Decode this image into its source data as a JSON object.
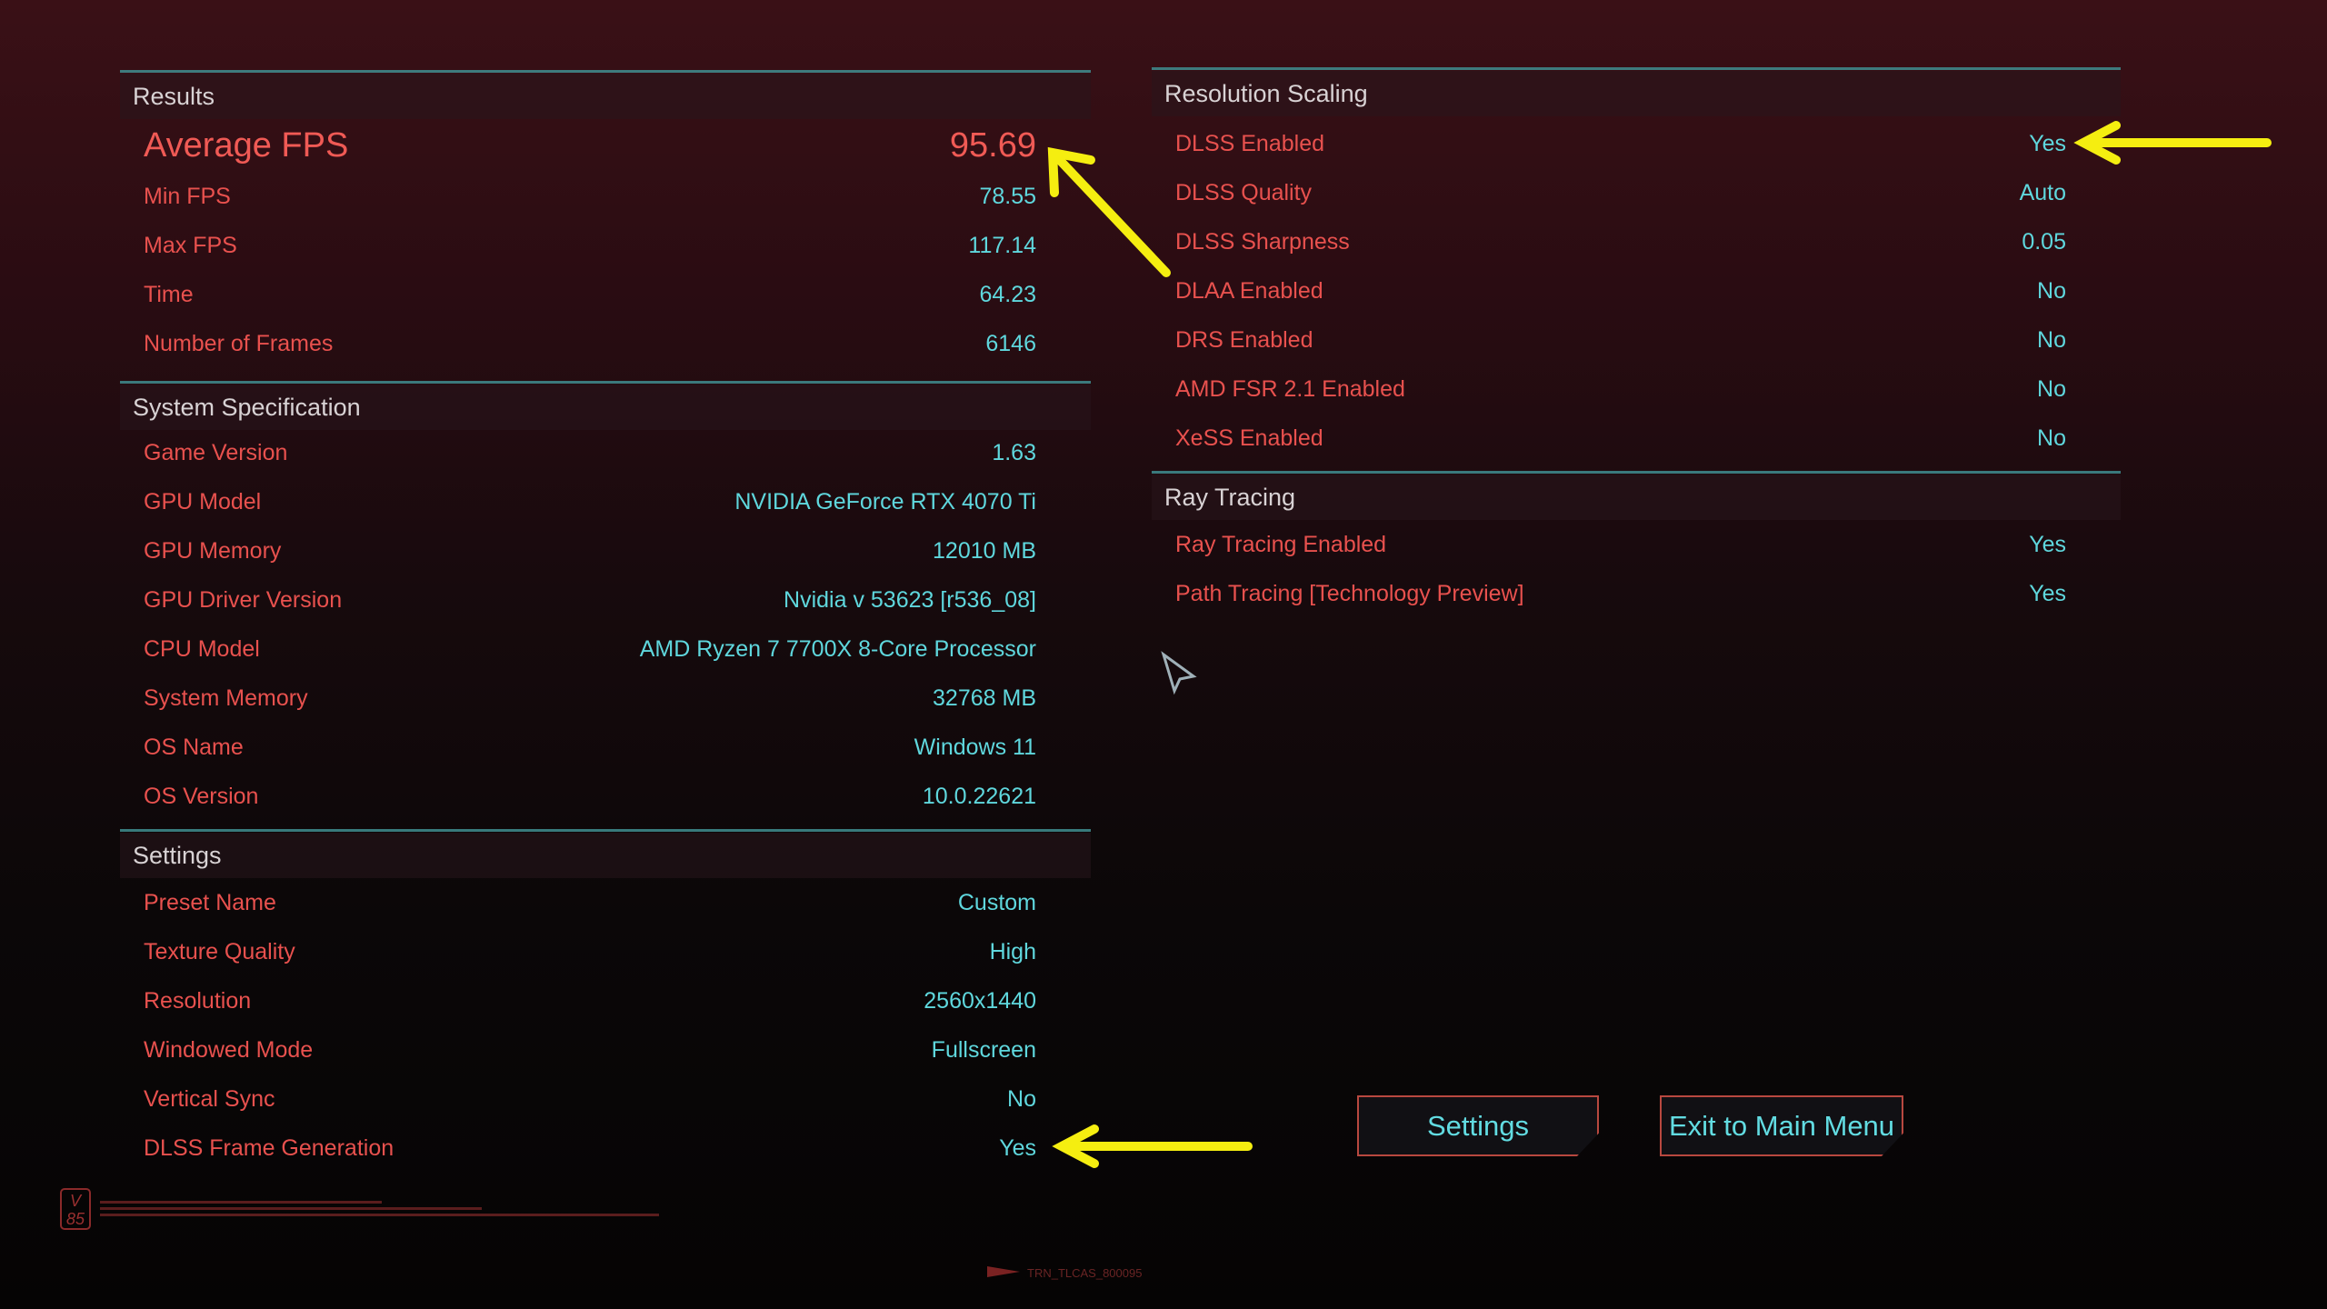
{
  "colors": {
    "label": "#e8514e",
    "value": "#5fd7dd",
    "accent_line": "#3f8e90",
    "annotation_arrow": "#f5ee10"
  },
  "left_sections": [
    {
      "title": "Results",
      "rows": [
        {
          "label": "Average FPS",
          "value": "95.69",
          "highlight": true
        },
        {
          "label": "Min FPS",
          "value": "78.55"
        },
        {
          "label": "Max FPS",
          "value": "117.14"
        },
        {
          "label": "Time",
          "value": "64.23"
        },
        {
          "label": "Number of Frames",
          "value": "6146"
        }
      ]
    },
    {
      "title": "System Specification",
      "rows": [
        {
          "label": "Game Version",
          "value": "1.63"
        },
        {
          "label": "GPU Model",
          "value": "NVIDIA GeForce RTX 4070 Ti"
        },
        {
          "label": "GPU Memory",
          "value": "12010 MB"
        },
        {
          "label": "GPU Driver Version",
          "value": "Nvidia v 53623 [r536_08]"
        },
        {
          "label": "CPU Model",
          "value": "AMD Ryzen 7 7700X 8-Core Processor"
        },
        {
          "label": "System Memory",
          "value": "32768 MB"
        },
        {
          "label": "OS Name",
          "value": "Windows 11"
        },
        {
          "label": "OS Version",
          "value": "10.0.22621"
        }
      ]
    },
    {
      "title": "Settings",
      "rows": [
        {
          "label": "Preset Name",
          "value": "Custom"
        },
        {
          "label": "Texture Quality",
          "value": "High"
        },
        {
          "label": "Resolution",
          "value": "2560x1440"
        },
        {
          "label": "Windowed Mode",
          "value": "Fullscreen"
        },
        {
          "label": "Vertical Sync",
          "value": "No"
        },
        {
          "label": "DLSS Frame Generation",
          "value": "Yes"
        }
      ]
    }
  ],
  "right_sections": [
    {
      "title": "Resolution Scaling",
      "rows": [
        {
          "label": "DLSS Enabled",
          "value": "Yes"
        },
        {
          "label": "DLSS Quality",
          "value": "Auto"
        },
        {
          "label": "DLSS Sharpness",
          "value": "0.05"
        },
        {
          "label": "DLAA Enabled",
          "value": "No"
        },
        {
          "label": "DRS Enabled",
          "value": "No"
        },
        {
          "label": "AMD FSR 2.1 Enabled",
          "value": "No"
        },
        {
          "label": "XeSS Enabled",
          "value": "No"
        }
      ]
    },
    {
      "title": "Ray Tracing",
      "rows": [
        {
          "label": "Ray Tracing Enabled",
          "value": "Yes"
        },
        {
          "label": "Path Tracing [Technology Preview]",
          "value": "Yes"
        }
      ]
    }
  ],
  "buttons": {
    "settings": "Settings",
    "exit": "Exit to Main Menu"
  },
  "footer": {
    "logo": "V 85",
    "code": "TRN_TLCAS_800095"
  },
  "icons": {
    "cursor": "pointer-cursor-icon",
    "arrows": "yellow-annotation-arrow-icon"
  }
}
